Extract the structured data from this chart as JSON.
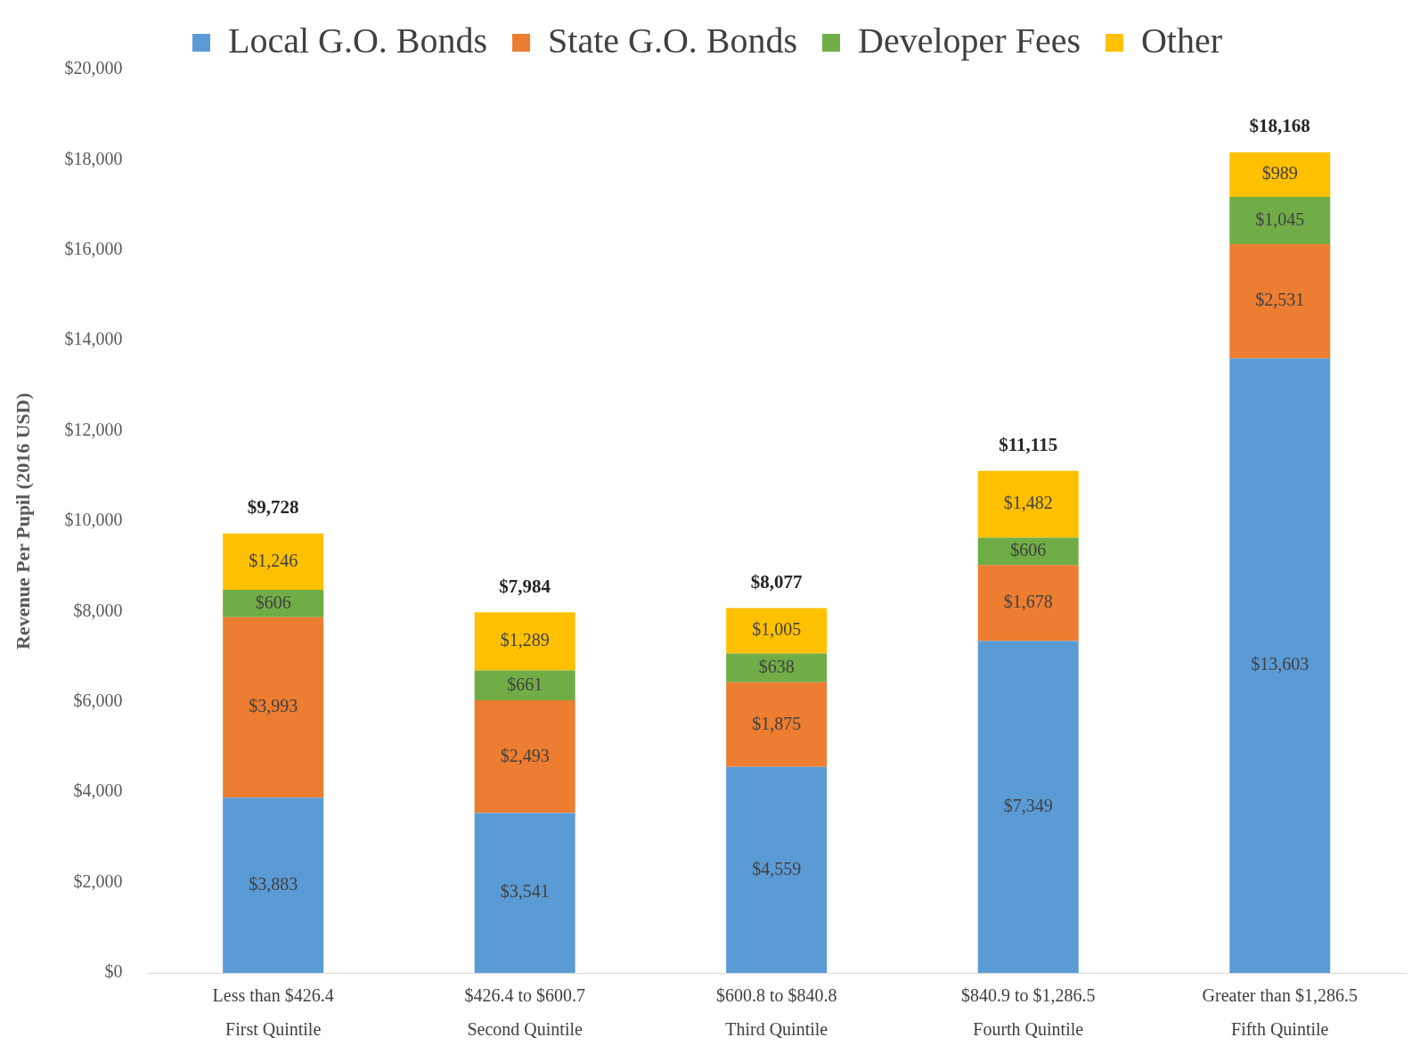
{
  "chart_data": {
    "type": "bar",
    "stacked": true,
    "ylabel": "Revenue Per Pupil (2016 USD)",
    "categories": [
      "Less than $426.4\nFirst Quintile",
      "$426.4 to $600.7\nSecond Quintile",
      "$600.8 to $840.8\nThird Quintile",
      "$840.9 to $1,286.5\nFourth Quintile",
      "Greater than $1,286.5\nFifth Quintile"
    ],
    "series": [
      {
        "name": "Local G.O. Bonds",
        "color": "#5b9bd5",
        "values": [
          3883,
          3541,
          4559,
          7349,
          13603
        ],
        "value_labels": [
          "$3,883",
          "$3,541",
          "$4,559",
          "$7,349",
          "$13,603"
        ]
      },
      {
        "name": "State G.O. Bonds",
        "color": "#ed7d31",
        "values": [
          3993,
          2493,
          1875,
          1678,
          2531
        ],
        "value_labels": [
          "$3,993",
          "$2,493",
          "$1,875",
          "$1,678",
          "$2,531"
        ]
      },
      {
        "name": "Developer Fees",
        "color": "#70ad47",
        "values": [
          606,
          661,
          638,
          606,
          1045
        ],
        "value_labels": [
          "$606",
          "$661",
          "$638",
          "$606",
          "$1,045"
        ]
      },
      {
        "name": "Other",
        "color": "#ffc000",
        "values": [
          1246,
          1289,
          1005,
          1482,
          989
        ],
        "value_labels": [
          "$1,246",
          "$1,289",
          "$1,005",
          "$1,482",
          "$989"
        ]
      }
    ],
    "totals": [
      "$9,728",
      "$7,984",
      "$8,077",
      "$11,115",
      "$18,168"
    ],
    "ylim": [
      0,
      20000
    ],
    "yticks": [
      {
        "value": 0,
        "label": "$0"
      },
      {
        "value": 2000,
        "label": "$2,000"
      },
      {
        "value": 4000,
        "label": "$4,000"
      },
      {
        "value": 6000,
        "label": "$6,000"
      },
      {
        "value": 8000,
        "label": "$8,000"
      },
      {
        "value": 10000,
        "label": "$10,000"
      },
      {
        "value": 12000,
        "label": "$12,000"
      },
      {
        "value": 14000,
        "label": "$14,000"
      },
      {
        "value": 16000,
        "label": "$16,000"
      },
      {
        "value": 18000,
        "label": "$18,000"
      },
      {
        "value": 20000,
        "label": "$20,000"
      }
    ],
    "grid": false,
    "legend": "top"
  }
}
